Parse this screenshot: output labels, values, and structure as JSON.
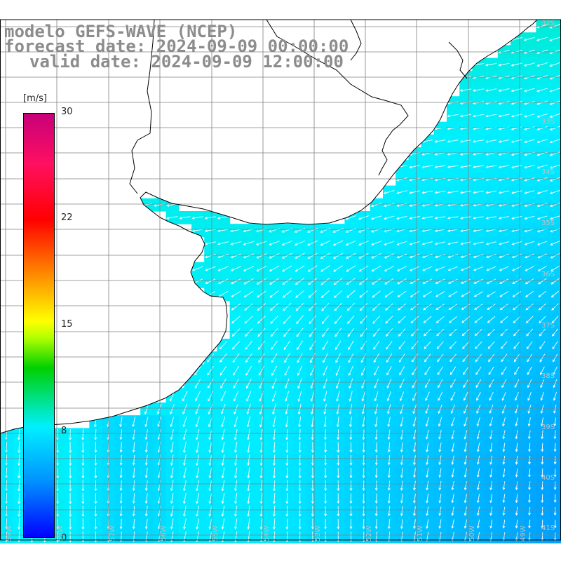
{
  "title": {
    "line1": "modelo GEFS-WAVE (NCEP)",
    "line2": "forecast date: 2024-09-09 00:00:00",
    "line3": "valid date: 2024-09-09 12:00:00"
  },
  "colorbar": {
    "unit": "[m/s]",
    "ticks": [
      "30",
      "22",
      "15",
      "8",
      "0"
    ],
    "range": [
      0,
      30
    ],
    "colors": [
      "#0000ff",
      "#0090ff",
      "#00f0ff",
      "#00d000",
      "#ffff00",
      "#ff8000",
      "#ff0000",
      "#c8007a"
    ]
  },
  "map": {
    "land_color": "#ffffff",
    "coast_color": "#000000",
    "grid_color": "#808080",
    "arrow_color": "#ffffff",
    "lat_labels": [
      "32S",
      "33S",
      "34S",
      "35S",
      "36S",
      "37S",
      "38S",
      "39S",
      "40S",
      "41S"
    ],
    "lon_labels": [
      "59W",
      "58W",
      "57W",
      "56W",
      "55W",
      "54W",
      "53W",
      "52W",
      "51W",
      "50W",
      "49W"
    ]
  }
}
